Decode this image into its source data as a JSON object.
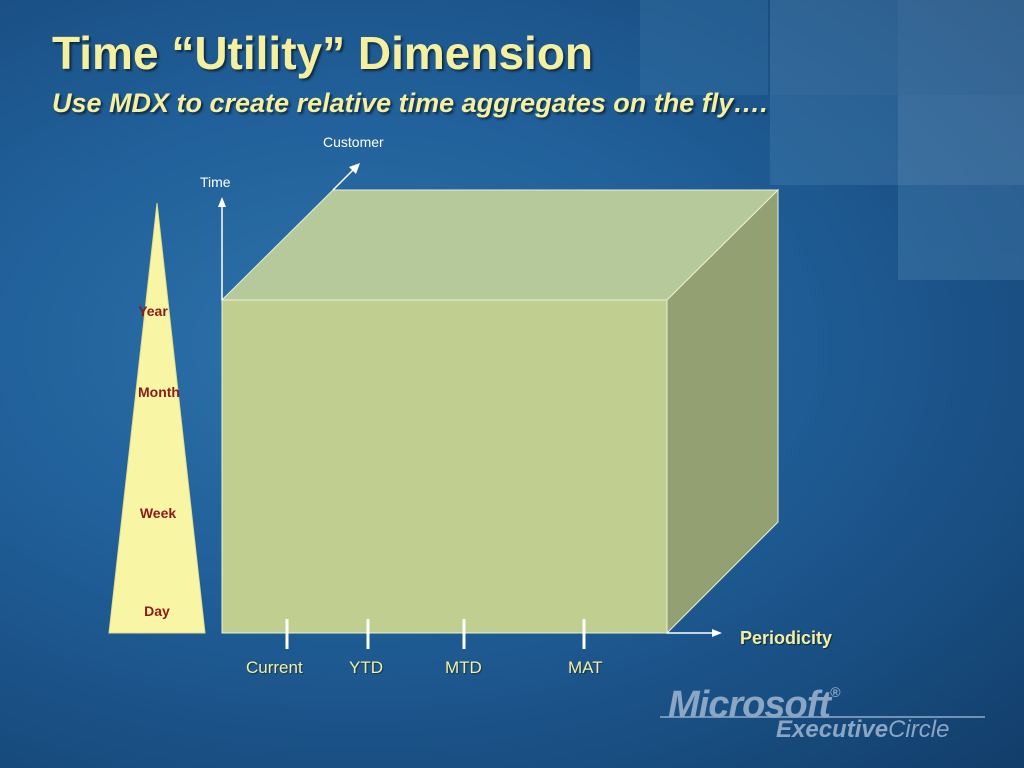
{
  "slide": {
    "title": "Time “Utility” Dimension",
    "subtitle": "Use MDX to create relative time aggregates on the fly…."
  },
  "diagram": {
    "axes": {
      "customer_label": "Customer",
      "time_label": "Time",
      "periodicity_label": "Periodicity"
    },
    "hierarchy_levels": [
      "Year",
      "Month",
      "Week",
      "Day"
    ],
    "periodicity_ticks": [
      "Current",
      "YTD",
      "MTD",
      "MAT"
    ],
    "colors": {
      "cube_front": "#c0cf90",
      "cube_top": "#b6c99b",
      "cube_side": "#93a071",
      "triangle_fill": "#f8f5a5",
      "hierarchy_text": "#8b1a1a",
      "accent_text": "#f5f0a0"
    }
  },
  "branding": {
    "logo_word": "Microsoft",
    "logo_registered": "®",
    "logo_line2_bold": "Executive",
    "logo_line2_light": "Circle"
  }
}
